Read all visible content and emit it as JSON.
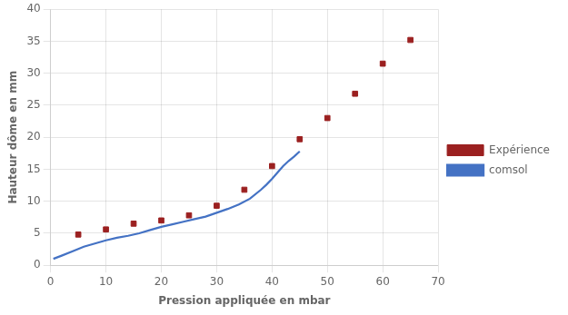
{
  "chart_data": {
    "type": "scatter",
    "xlabel": "Pression appliquée en mbar",
    "ylabel": "Hauteur dôme en mm",
    "xlim": [
      0,
      70
    ],
    "ylim": [
      0,
      40
    ],
    "xticks": [
      0,
      10,
      20,
      30,
      40,
      50,
      60,
      70
    ],
    "yticks": [
      0,
      5,
      10,
      15,
      20,
      25,
      30,
      35,
      40
    ],
    "grid": true,
    "legend": "right",
    "series": [
      {
        "name": "comsol",
        "type": "line",
        "line_style": "solid",
        "color": "#4472C4",
        "x": [
          0.5,
          2,
          4,
          6,
          8,
          10,
          12,
          14,
          16,
          18,
          20,
          22,
          24,
          26,
          28,
          30,
          32,
          34,
          36,
          38,
          39,
          40,
          41,
          42,
          43,
          44,
          45
        ],
        "values": [
          1.0,
          1.5,
          2.2,
          2.9,
          3.4,
          3.9,
          4.3,
          4.6,
          5.0,
          5.5,
          6.0,
          6.4,
          6.8,
          7.2,
          7.6,
          8.2,
          8.8,
          9.5,
          10.4,
          11.8,
          12.6,
          13.5,
          14.5,
          15.5,
          16.3,
          17.0,
          17.8
        ]
      },
      {
        "name": "Expérience",
        "type": "scatter",
        "marker": "square",
        "color": "#9B2020",
        "x": [
          5,
          10,
          15,
          20,
          25,
          30,
          35,
          40,
          45,
          50,
          55,
          60,
          65
        ],
        "values": [
          4.8,
          5.6,
          6.5,
          7.0,
          7.8,
          9.3,
          11.8,
          15.5,
          19.7,
          23.0,
          26.8,
          31.5,
          35.2
        ]
      }
    ]
  }
}
